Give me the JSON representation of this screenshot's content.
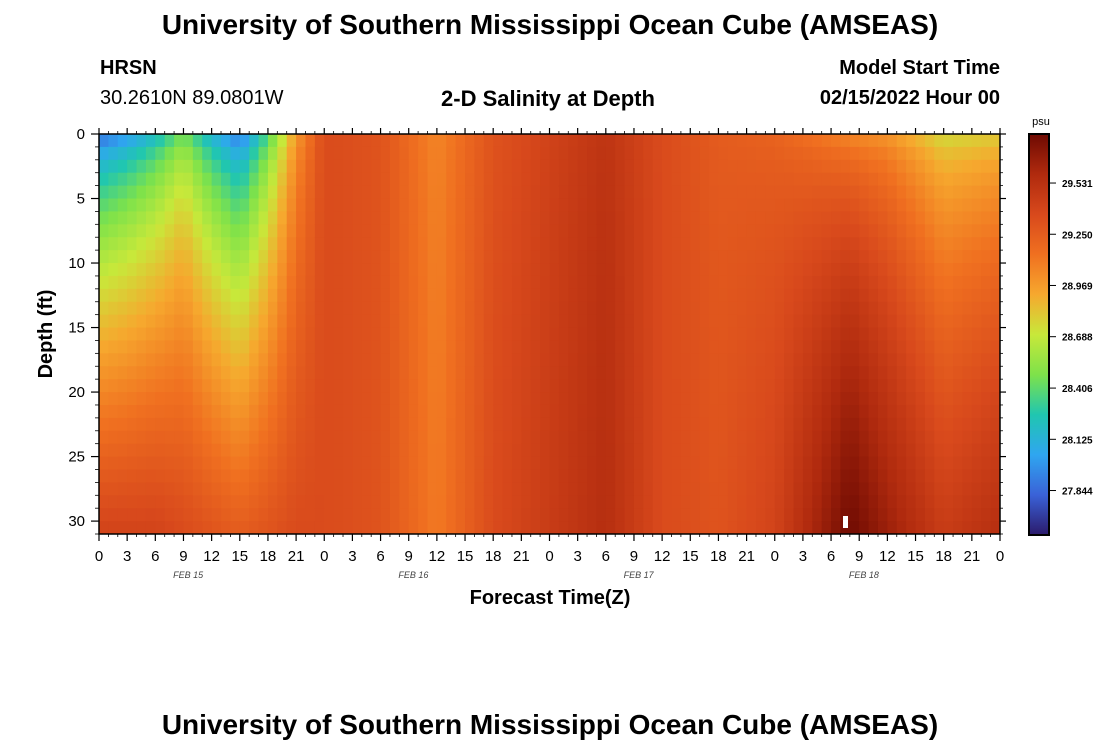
{
  "header": {
    "title": "University of Southern Mississippi Ocean Cube (AMSEAS)",
    "station": "HRSN",
    "coords": "30.2610N  89.0801W",
    "subtitle": "2-D Salinity at Depth",
    "start_label": "Model Start Time",
    "start_value": "02/15/2022 Hour 00"
  },
  "footer": {
    "title": "University of Southern Mississippi Ocean Cube (AMSEAS)"
  },
  "colors": {
    "stops": [
      "#2b1a6b",
      "#3a62d8",
      "#2fa6f0",
      "#20c6b0",
      "#7ee24a",
      "#c8e83a",
      "#f6a82e",
      "#f07020",
      "#d8491c",
      "#b02a0e",
      "#6e0a02"
    ]
  },
  "chart_data": {
    "type": "heatmap",
    "title": "2-D Salinity at Depth",
    "xlabel": "Forecast Time(Z)",
    "ylabel": "Depth (ft)",
    "x_ticks": [
      "0",
      "3",
      "6",
      "9",
      "12",
      "15",
      "18",
      "21",
      "0",
      "3",
      "6",
      "9",
      "12",
      "15",
      "18",
      "21",
      "0",
      "3",
      "6",
      "9",
      "12",
      "15",
      "18",
      "21",
      "0",
      "3",
      "6",
      "9",
      "12",
      "15",
      "18",
      "21",
      "0"
    ],
    "x_range_hours": [
      0,
      96
    ],
    "date_labels": [
      "FEB 15",
      "FEB 16",
      "FEB 17",
      "FEB 18"
    ],
    "y_ticks": [
      0,
      5,
      10,
      15,
      20,
      25,
      30
    ],
    "y_range_ft": [
      0,
      31
    ],
    "colorbar": {
      "unit": "psu",
      "range": [
        27.6,
        29.8
      ],
      "ticks": [
        "29.531",
        "29.250",
        "28.969",
        "28.688",
        "28.406",
        "28.125",
        "27.844"
      ]
    },
    "salinity_profile_hourly": {
      "hours": [
        0,
        3,
        6,
        9,
        12,
        15,
        18,
        21,
        24,
        30,
        36,
        42,
        48,
        54,
        60,
        66,
        72,
        78,
        80,
        84,
        90,
        96
      ],
      "surface_psu": [
        27.75,
        27.9,
        28.1,
        28.4,
        28.05,
        27.8,
        28.3,
        28.95,
        29.35,
        29.3,
        29.05,
        29.3,
        29.4,
        29.5,
        29.35,
        29.25,
        29.2,
        29.05,
        29.0,
        28.95,
        28.7,
        28.75
      ],
      "bottom_psu": [
        29.4,
        29.4,
        29.4,
        29.35,
        29.3,
        29.25,
        29.3,
        29.35,
        29.35,
        29.3,
        29.1,
        29.35,
        29.45,
        29.55,
        29.35,
        29.3,
        29.4,
        29.7,
        29.8,
        29.65,
        29.45,
        29.55
      ]
    }
  }
}
